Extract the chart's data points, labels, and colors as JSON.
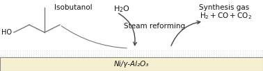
{
  "fig_width": 3.78,
  "fig_height": 1.03,
  "dpi": 100,
  "bg_color": "#ffffff",
  "catalyst_bar_color": "#f5f0d0",
  "catalyst_bar_edge": "#888888",
  "dotted_layer_color": "#bbbbbb",
  "catalyst_label": "Ni/γ-Al₂O₃",
  "isobutanol_label": "Isobutanol",
  "water_label": "H₂O",
  "steam_reforming_label": "Steam reforming",
  "synthesis_gas_label": "Synthesis gas",
  "products_label": "H₂+CO+CO₂",
  "ho_label": "HO",
  "line_color": "#777777",
  "arrow_color": "#444444",
  "text_color": "#111111"
}
